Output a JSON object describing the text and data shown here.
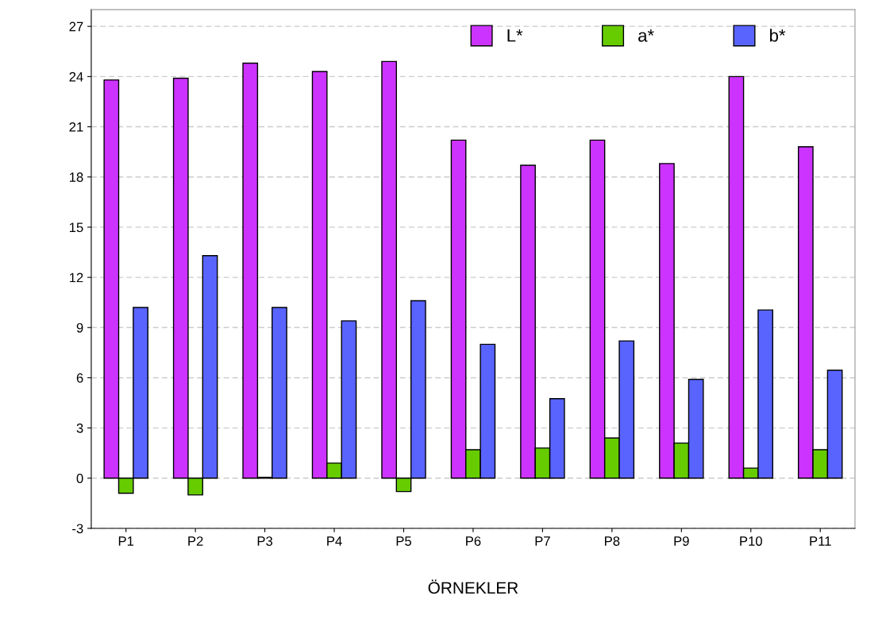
{
  "chart_data": {
    "type": "bar",
    "xlabel": "ÖRNEKLER",
    "categories": [
      "P1",
      "P2",
      "P3",
      "P4",
      "P5",
      "P6",
      "P7",
      "P8",
      "P9",
      "P10",
      "P11"
    ],
    "series": [
      {
        "name": "L*",
        "color": "#cc33ff",
        "values": [
          23.8,
          23.9,
          24.8,
          24.3,
          24.9,
          20.2,
          18.7,
          20.2,
          18.8,
          24.0,
          19.8
        ]
      },
      {
        "name": "a*",
        "color": "#66cc00",
        "values": [
          -0.9,
          -1.0,
          0.05,
          0.9,
          -0.8,
          1.7,
          1.8,
          2.4,
          2.1,
          0.6,
          1.7
        ]
      },
      {
        "name": "b*",
        "color": "#5964ff",
        "values": [
          10.2,
          13.3,
          10.2,
          9.4,
          10.6,
          8.0,
          4.75,
          8.2,
          5.9,
          10.05,
          6.45
        ]
      }
    ],
    "ylim": [
      -3,
      28
    ],
    "yticks": [
      -3,
      0,
      3,
      6,
      9,
      12,
      15,
      18,
      21,
      24,
      27
    ],
    "grid": "y",
    "legend": "top right"
  }
}
